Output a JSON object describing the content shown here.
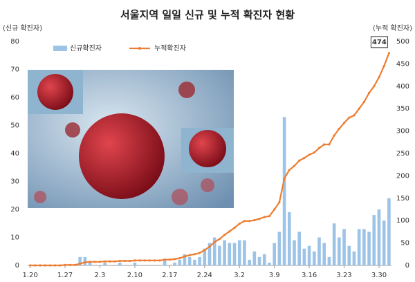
{
  "chart_data": {
    "type": "bar-line",
    "title": "서울지역 일일 신규 및 누적 확진자 현황",
    "y_label": "(신규 확진자)",
    "y2_label": "(누적 확진자)",
    "categories": [
      "1.20",
      null,
      null,
      null,
      null,
      null,
      null,
      "1.27",
      null,
      null,
      null,
      null,
      null,
      null,
      "2.3",
      null,
      null,
      null,
      null,
      null,
      null,
      "2.10",
      null,
      null,
      null,
      null,
      null,
      null,
      "2.17",
      null,
      null,
      null,
      null,
      null,
      null,
      "2.24",
      null,
      null,
      null,
      null,
      null,
      null,
      "3.2",
      null,
      null,
      null,
      null,
      null,
      null,
      "3.9",
      null,
      null,
      null,
      null,
      null,
      null,
      "3.16",
      null,
      null,
      null,
      null,
      null,
      null,
      "3.23",
      null,
      null,
      null,
      null,
      null,
      null,
      "3.30",
      null,
      null
    ],
    "series": [
      {
        "name": "신규확진자",
        "color": "#9dc3e6",
        "kind": "bar",
        "values": [
          0,
          0,
          0,
          0,
          0,
          0,
          0,
          0,
          0,
          0,
          3,
          3,
          1,
          0,
          0,
          1,
          0,
          0,
          1,
          0,
          0,
          1,
          0,
          0,
          0,
          0,
          0,
          2,
          0,
          1,
          2,
          4,
          3,
          2,
          3,
          6,
          8,
          10,
          7,
          9,
          8,
          8,
          9,
          9,
          2,
          5,
          3,
          4,
          1,
          8,
          12,
          53,
          19,
          9,
          12,
          6,
          7,
          5,
          10,
          8,
          3,
          15,
          10,
          13,
          7,
          5,
          13,
          13,
          12,
          18,
          20,
          16,
          24
        ]
      },
      {
        "name": "누적확진자",
        "color": "#ed7d31",
        "kind": "line",
        "axis": "y2",
        "values": [
          0,
          0,
          0,
          0,
          0,
          0,
          0,
          1,
          1,
          1,
          4,
          7,
          8,
          8,
          8,
          9,
          9,
          9,
          10,
          10,
          10,
          11,
          11,
          11,
          11,
          11,
          11,
          13,
          13,
          14,
          16,
          20,
          23,
          25,
          28,
          34,
          42,
          52,
          59,
          68,
          76,
          84,
          93,
          99,
          99,
          101,
          104,
          108,
          110,
          125,
          141,
          194,
          213,
          222,
          234,
          240,
          247,
          252,
          262,
          270,
          270,
          290,
          305,
          318,
          330,
          335,
          350,
          365,
          385,
          400,
          420,
          445,
          474
        ]
      }
    ],
    "ylim": [
      0,
      80
    ],
    "yticks": [
      0,
      10,
      20,
      30,
      40,
      50,
      60,
      70,
      80
    ],
    "y2lim": [
      0,
      500
    ],
    "y2ticks": [
      0,
      50,
      100,
      150,
      200,
      250,
      300,
      350,
      400,
      450,
      500
    ],
    "annotation": {
      "text": "474",
      "index": 72
    },
    "grid": false
  }
}
